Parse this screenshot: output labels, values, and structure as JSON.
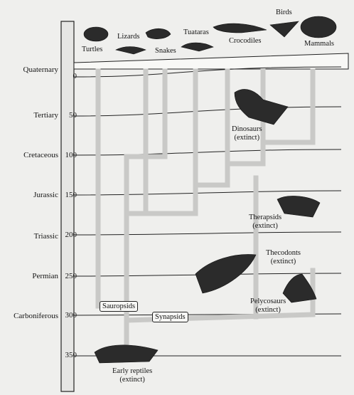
{
  "periods": [
    {
      "name": "Quaternary",
      "tick": "0"
    },
    {
      "name": "Tertiary",
      "tick": "50"
    },
    {
      "name": "Cretaceous",
      "tick": "100"
    },
    {
      "name": "Jurassic",
      "tick": "150"
    },
    {
      "name": "Triassic",
      "tick": "200"
    },
    {
      "name": "Permian",
      "tick": "250"
    },
    {
      "name": "Carboniferous",
      "tick": "300"
    },
    {
      "name": "",
      "tick": "350"
    }
  ],
  "living_groups": {
    "turtles": "Turtles",
    "lizards": "Lizards",
    "snakes": "Snakes",
    "tuataras": "Tuataras",
    "crocodiles": "Crocodiles",
    "birds": "Birds",
    "mammals": "Mammals"
  },
  "extinct_groups": {
    "dinosaurs": "Dinosaurs",
    "therapsids": "Therapsids",
    "thecodonts": "Thecodonts",
    "pelycosaurs": "Pelycosaurs",
    "early_reptiles": "Early reptiles",
    "extinct_note": "(extinct)"
  },
  "lineages": {
    "sauropsids": "Sauropsids",
    "synapsids": "Synapsids"
  }
}
